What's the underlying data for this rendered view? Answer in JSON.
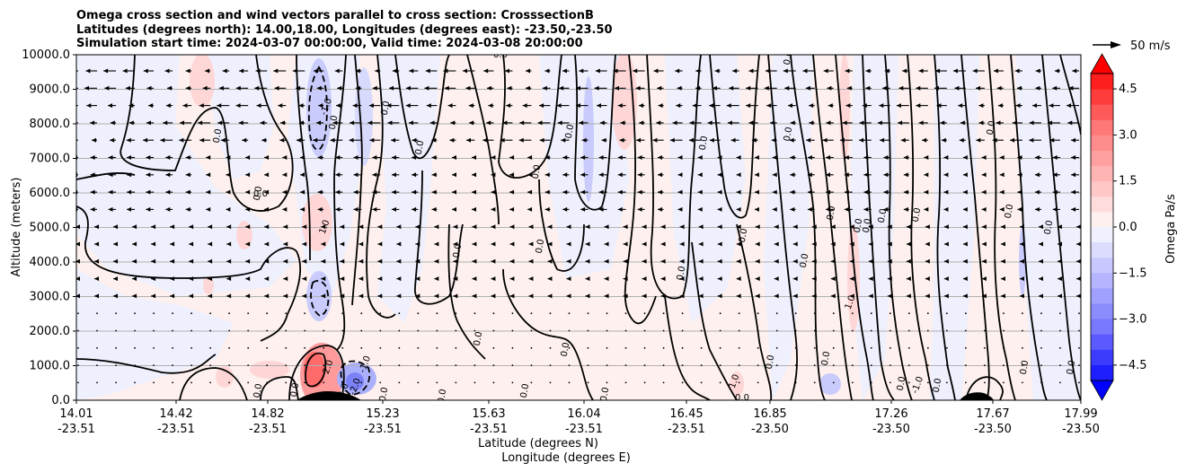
{
  "chart_data": {
    "type": "contour-cross-section",
    "title_lines": [
      "Omega cross section and wind vectors parallel to cross section: CrosssectionB",
      "Latitudes (degrees north): 14.00,18.00, Longitudes (degrees east): -23.50,-23.50",
      "Simulation start time: 2024-03-07 00:00:00, Valid time: 2024-03-08 20:00:00"
    ],
    "ylabel": "Altitude (meters)",
    "xlabel_lines": [
      "Latitude (degrees N)",
      "Longitude (degrees E)"
    ],
    "yticks": [
      "0.0",
      "1000.0",
      "2000.0",
      "3000.0",
      "4000.0",
      "5000.0",
      "6000.0",
      "7000.0",
      "8000.0",
      "9000.0",
      "10000.0"
    ],
    "ylim": [
      0,
      10000
    ],
    "x_ticks": [
      {
        "lat": "14.01",
        "lon": "-23.51"
      },
      {
        "lat": "14.42",
        "lon": "-23.51"
      },
      {
        "lat": "14.82",
        "lon": "-23.51"
      },
      {
        "lat": "15.23",
        "lon": "-23.51"
      },
      {
        "lat": "15.63",
        "lon": "-23.51"
      },
      {
        "lat": "16.04",
        "lon": "-23.51"
      },
      {
        "lat": "16.45",
        "lon": "-23.51"
      },
      {
        "lat": "16.85",
        "lon": "-23.50"
      },
      {
        "lat": "17.26",
        "lon": "-23.50"
      },
      {
        "lat": "17.67",
        "lon": "-23.50"
      },
      {
        "lat": "17.99",
        "lon": "-23.50"
      }
    ],
    "grid": "horizontal",
    "colorbar": {
      "label": "Omega Pa/s",
      "ticks": [
        "4.5",
        "3.0",
        "1.5",
        "0.0",
        "−1.5",
        "−3.0",
        "−4.5"
      ],
      "range": [
        -5,
        5
      ],
      "colors_positive": "#ff0000",
      "colors_negative": "#0000ff",
      "extend": "both"
    },
    "quiver_key": {
      "label": "50 m/s"
    },
    "contour_labels": [
      "0.0",
      "0.0",
      "0.0",
      "0.0",
      "0.0",
      "0.0",
      "0.0",
      "0.0",
      "0.0",
      "0.0",
      "0.0",
      "0.0",
      "0.0",
      "0.0",
      "0.0",
      "0.0",
      "0.0",
      "0.0",
      "0.0",
      "0.0",
      "0.0",
      "0.0",
      "0.0",
      "0.0",
      "0.0",
      "0.0",
      "0.0",
      "1.0",
      "1.0",
      "1.0",
      "2.0",
      "-1.0",
      "-1.0",
      "-1.0",
      "-1.0",
      "-2.0",
      "3.0"
    ]
  }
}
